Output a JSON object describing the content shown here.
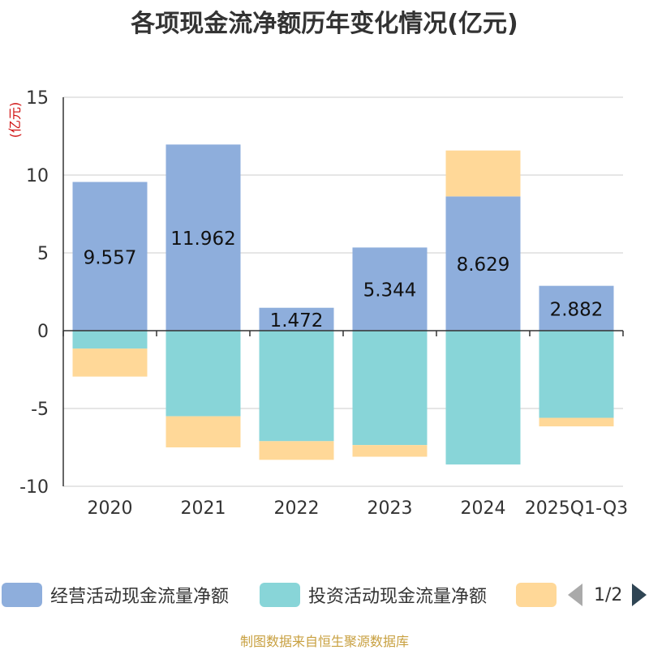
{
  "chart_data": {
    "type": "bar",
    "stacked": true,
    "title": "各项现金流净额历年变化情况(亿元)",
    "ylabel": "(亿元)",
    "ylim": [
      -10,
      15
    ],
    "yticks": [
      15,
      10,
      5,
      0,
      -5,
      -10
    ],
    "categories": [
      "2020",
      "2021",
      "2022",
      "2023",
      "2024",
      "2025Q1-Q3"
    ],
    "series": [
      {
        "name": "经营活动现金流量净额",
        "color": "#8eaedc",
        "values": [
          9.557,
          11.962,
          1.472,
          5.344,
          8.629,
          2.882
        ],
        "show_labels": true
      },
      {
        "name": "投资活动现金流量净额",
        "color": "#88d5d8",
        "values": [
          -1.15,
          -5.5,
          -7.1,
          -7.35,
          -8.6,
          -5.6
        ],
        "show_labels": false
      },
      {
        "name": "",
        "color": "#ffd898",
        "values": [
          -1.8,
          -2.0,
          -1.2,
          -0.75,
          2.95,
          -0.55
        ],
        "show_labels": false
      }
    ]
  },
  "legend": {
    "items": [
      {
        "label": "经营活动现金流量净额"
      },
      {
        "label": "投资活动现金流量净额"
      },
      {
        "label": ""
      }
    ],
    "page": "1/2"
  },
  "source": "制图数据来自恒生聚源数据库"
}
